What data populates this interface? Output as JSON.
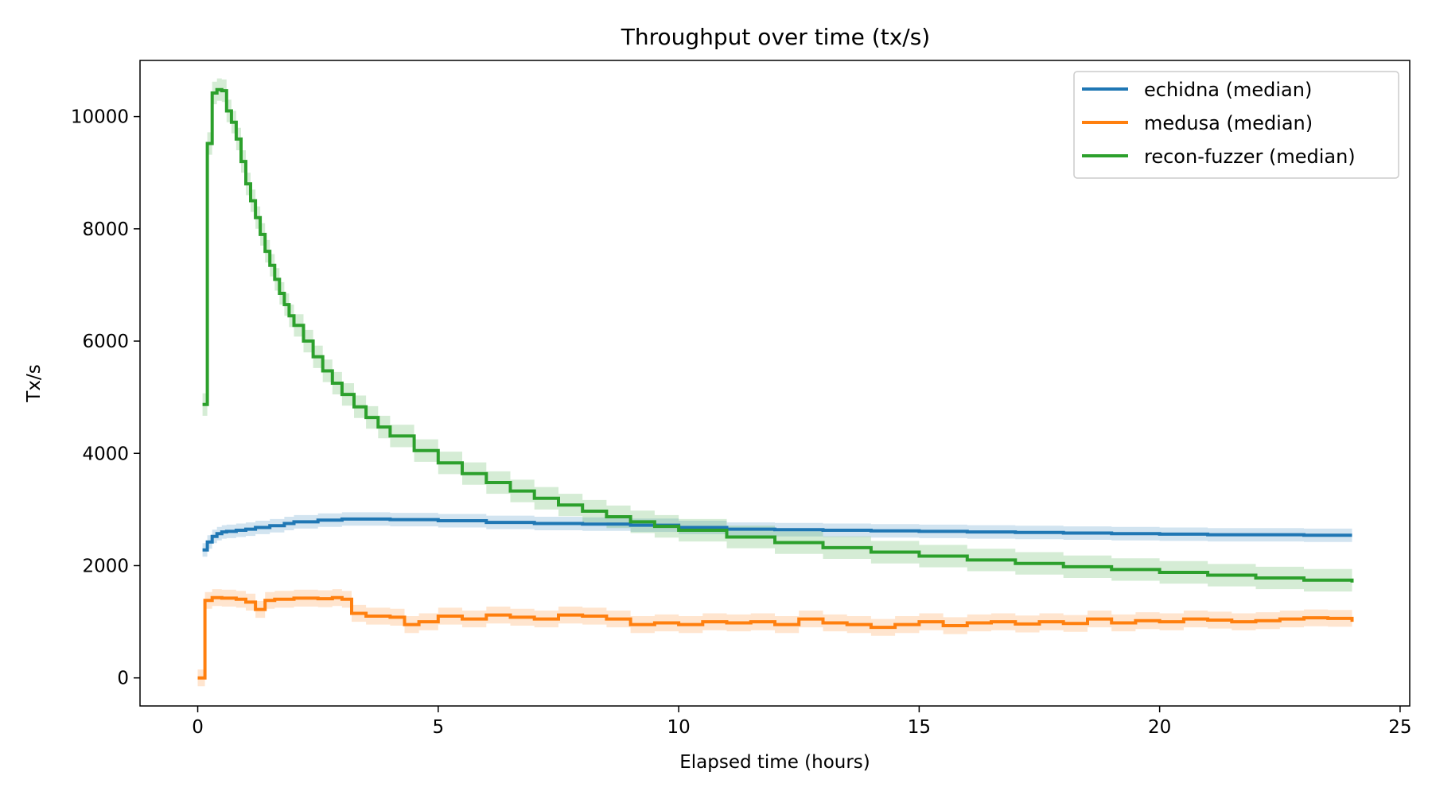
{
  "chart_data": {
    "type": "line",
    "title": "Throughput over time (tx/s)",
    "xlabel": "Elapsed time (hours)",
    "ylabel": "Tx/s",
    "xlim": [
      -1.2,
      25.2
    ],
    "ylim": [
      -500,
      11000
    ],
    "xticks": [
      0,
      5,
      10,
      15,
      20,
      25
    ],
    "yticks": [
      0,
      2000,
      4000,
      6000,
      8000,
      10000
    ],
    "grid": false,
    "legend_position": "top-right",
    "series": [
      {
        "name": "echidna (median)",
        "color": "#1f77b4",
        "step": true,
        "band": 120,
        "x": [
          0.1,
          0.2,
          0.3,
          0.4,
          0.5,
          0.6,
          0.8,
          1.0,
          1.2,
          1.5,
          1.8,
          2.0,
          2.5,
          3.0,
          3.5,
          4.0,
          5.0,
          6.0,
          7.0,
          8.0,
          9.0,
          10.0,
          11.0,
          12.0,
          13.0,
          14.0,
          15.0,
          16.0,
          17.0,
          18.0,
          19.0,
          20.0,
          21.0,
          22.0,
          23.0,
          24.0
        ],
        "y": [
          2280,
          2420,
          2520,
          2570,
          2600,
          2610,
          2630,
          2650,
          2680,
          2710,
          2750,
          2780,
          2810,
          2830,
          2830,
          2820,
          2800,
          2770,
          2750,
          2740,
          2720,
          2680,
          2650,
          2640,
          2630,
          2620,
          2610,
          2600,
          2590,
          2580,
          2570,
          2560,
          2550,
          2550,
          2540,
          2540
        ]
      },
      {
        "name": "medusa (median)",
        "color": "#ff7f0e",
        "step": true,
        "band": 150,
        "x": [
          0.0,
          0.15,
          0.3,
          0.5,
          0.8,
          1.0,
          1.2,
          1.4,
          1.6,
          2.0,
          2.5,
          2.8,
          3.0,
          3.2,
          3.5,
          4.0,
          4.3,
          4.6,
          5.0,
          5.5,
          6.0,
          6.5,
          7.0,
          7.5,
          8.0,
          8.5,
          9.0,
          9.5,
          10.0,
          10.5,
          11.0,
          11.5,
          12.0,
          12.5,
          13.0,
          13.5,
          14.0,
          14.5,
          15.0,
          15.5,
          16.0,
          16.5,
          17.0,
          17.5,
          18.0,
          18.5,
          19.0,
          19.5,
          20.0,
          20.5,
          21.0,
          21.5,
          22.0,
          22.5,
          23.0,
          23.5,
          24.0
        ],
        "y": [
          0,
          1380,
          1430,
          1420,
          1400,
          1350,
          1220,
          1380,
          1400,
          1420,
          1410,
          1430,
          1400,
          1150,
          1100,
          1080,
          950,
          1000,
          1100,
          1050,
          1120,
          1080,
          1050,
          1120,
          1100,
          1050,
          950,
          980,
          950,
          1000,
          980,
          1000,
          950,
          1050,
          980,
          950,
          900,
          950,
          1000,
          930,
          980,
          1000,
          960,
          1000,
          970,
          1050,
          980,
          1020,
          1000,
          1050,
          1030,
          1000,
          1020,
          1050,
          1070,
          1060,
          1000
        ]
      },
      {
        "name": "recon-fuzzer (median)",
        "color": "#2ca02c",
        "step": true,
        "band": 200,
        "x": [
          0.1,
          0.2,
          0.3,
          0.4,
          0.5,
          0.6,
          0.7,
          0.8,
          0.9,
          1.0,
          1.1,
          1.2,
          1.3,
          1.4,
          1.5,
          1.6,
          1.7,
          1.8,
          1.9,
          2.0,
          2.2,
          2.4,
          2.6,
          2.8,
          3.0,
          3.25,
          3.5,
          3.75,
          4.0,
          4.5,
          5.0,
          5.5,
          6.0,
          6.5,
          7.0,
          7.5,
          8.0,
          8.5,
          9.0,
          9.5,
          10.0,
          11.0,
          12.0,
          13.0,
          14.0,
          15.0,
          16.0,
          17.0,
          18.0,
          19.0,
          20.0,
          21.0,
          22.0,
          23.0,
          24.0
        ],
        "y": [
          4870,
          9520,
          10420,
          10480,
          10460,
          10100,
          9900,
          9600,
          9200,
          8800,
          8500,
          8200,
          7900,
          7600,
          7350,
          7100,
          6850,
          6650,
          6450,
          6280,
          6000,
          5720,
          5470,
          5250,
          5050,
          4830,
          4640,
          4470,
          4310,
          4050,
          3830,
          3640,
          3480,
          3330,
          3200,
          3080,
          2970,
          2870,
          2780,
          2700,
          2630,
          2510,
          2410,
          2320,
          2240,
          2170,
          2100,
          2040,
          1980,
          1930,
          1880,
          1830,
          1780,
          1740,
          1700
        ]
      }
    ]
  }
}
